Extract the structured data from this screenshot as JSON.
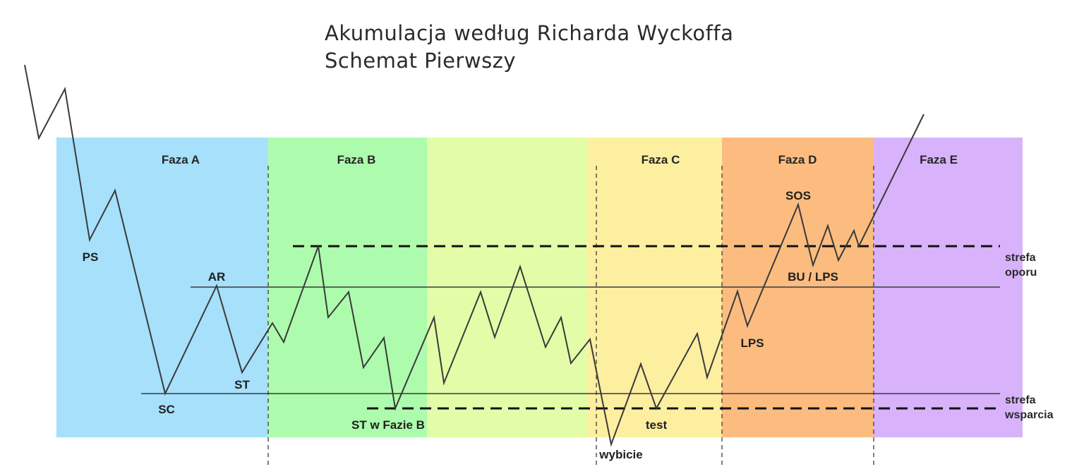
{
  "title": {
    "line1": "Akumulacja według Richarda Wyckoffa",
    "line2": "Schemat Pierwszy"
  },
  "phases": [
    {
      "id": "a",
      "label": "Faza A",
      "color": "#a6e0fb"
    },
    {
      "id": "b",
      "label": "Faza B",
      "color": "#adfcad"
    },
    {
      "id": "b2",
      "label": "",
      "color": "#e3fca8"
    },
    {
      "id": "c",
      "label": "Faza C",
      "color": "#fdefa0"
    },
    {
      "id": "d",
      "label": "Faza D",
      "color": "#fcbc80"
    },
    {
      "id": "e",
      "label": "Faza E",
      "color": "#d8b2fb"
    }
  ],
  "events": {
    "ps": "PS",
    "sc": "SC",
    "ar": "AR",
    "st": "ST",
    "st_b": "ST w Fazie B",
    "spring": "wybicie",
    "test": "test",
    "lps": "LPS",
    "sos": "SOS",
    "bu_lps": "BU / LPS"
  },
  "zones": {
    "resistance": [
      "strefa",
      "oporu"
    ],
    "support": [
      "strefa",
      "wsparcia"
    ]
  },
  "colors": {
    "price_line": "#3a3a3a",
    "level_line": "#3a3a3a",
    "dashed_line": "#111111"
  }
}
